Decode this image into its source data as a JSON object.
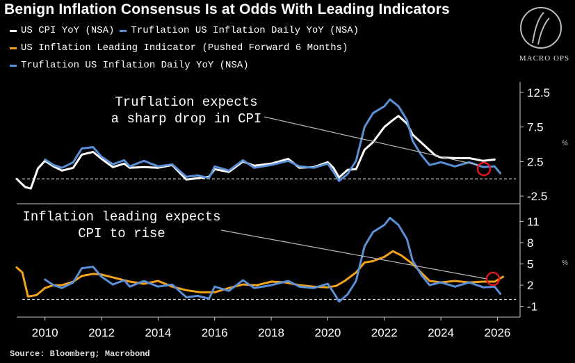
{
  "title": "Benign Inflation Consensus Is at Odds With Leading Indicators",
  "legend": {
    "item1": "US CPI YoY (NSA)",
    "item2": "Truflation US Inflation Daily YoY (NSA)",
    "item3": "US Inflation Leading Indicator (Pushed Forward 6 Months)",
    "item4": "Truflation US Inflation Daily YoY (NSA)"
  },
  "logo_text": "MACRO OPS",
  "source": "Source: Bloomberg; Macrobond",
  "colors": {
    "cpi": "#ffffff",
    "truflation": "#5b8fd6",
    "leading": "#f2a31b",
    "highlight": "#e0191f",
    "background": "#000000",
    "axis": "#cccccc"
  },
  "chart_data": [
    {
      "type": "line",
      "annotation": [
        "Truflation expects",
        "a sharp drop in CPI"
      ],
      "yticks": [
        12.5,
        7.5,
        2.5,
        -2.5
      ],
      "ytick_labels": [
        "12.5",
        "7.5",
        "2.5",
        "-2.5"
      ],
      "ylim": [
        -3.5,
        14
      ],
      "xlim": [
        2009,
        2026.8
      ],
      "axis_marker": "%",
      "grid": false,
      "series": [
        {
          "key": "cpi",
          "x": [
            2009.0,
            2009.3,
            2009.5,
            2009.75,
            2010.0,
            2010.3,
            2010.6,
            2011.0,
            2011.3,
            2011.7,
            2012.0,
            2012.4,
            2012.8,
            2013.0,
            2013.5,
            2014.0,
            2014.5,
            2015.0,
            2015.4,
            2015.8,
            2016.0,
            2016.5,
            2017.0,
            2017.4,
            2018.0,
            2018.6,
            2019.0,
            2019.5,
            2020.0,
            2020.2,
            2020.4,
            2020.7,
            2021.0,
            2021.3,
            2021.6,
            2022.0,
            2022.3,
            2022.5,
            2022.8,
            2023.0,
            2023.4,
            2023.8,
            2024.0,
            2024.5,
            2025.0,
            2025.5,
            2025.9
          ],
          "y": [
            0.0,
            -1.2,
            -1.4,
            1.5,
            2.6,
            1.8,
            1.2,
            1.6,
            3.5,
            3.9,
            2.9,
            1.7,
            2.2,
            1.6,
            1.7,
            1.6,
            2.0,
            -0.1,
            0.1,
            0.3,
            1.4,
            1.0,
            2.5,
            1.9,
            2.2,
            2.9,
            1.6,
            1.7,
            2.4,
            1.6,
            0.2,
            1.3,
            1.4,
            4.2,
            5.3,
            7.5,
            8.5,
            9.1,
            8.0,
            6.4,
            4.9,
            3.4,
            3.1,
            3.0,
            3.0,
            2.6,
            2.8
          ]
        },
        {
          "key": "truflation",
          "x": [
            2010.0,
            2010.3,
            2010.6,
            2011.0,
            2011.3,
            2011.7,
            2012.0,
            2012.4,
            2012.8,
            2013.0,
            2013.5,
            2014.0,
            2014.5,
            2015.0,
            2015.4,
            2015.8,
            2016.0,
            2016.5,
            2017.0,
            2017.4,
            2018.0,
            2018.6,
            2019.0,
            2019.5,
            2020.0,
            2020.2,
            2020.4,
            2020.7,
            2021.0,
            2021.3,
            2021.6,
            2022.0,
            2022.2,
            2022.5,
            2022.8,
            2023.0,
            2023.3,
            2023.6,
            2024.0,
            2024.5,
            2025.0,
            2025.5,
            2025.9,
            2026.1
          ],
          "y": [
            2.8,
            2.0,
            1.6,
            2.4,
            4.4,
            4.6,
            3.2,
            2.1,
            2.7,
            1.8,
            2.6,
            1.8,
            2.1,
            0.3,
            0.5,
            0.1,
            1.8,
            1.2,
            2.7,
            1.6,
            2.0,
            2.6,
            1.8,
            1.6,
            2.2,
            1.0,
            -0.3,
            0.7,
            2.6,
            7.5,
            9.5,
            10.5,
            11.5,
            10.5,
            8.5,
            5.5,
            3.5,
            2.0,
            2.4,
            1.8,
            2.4,
            1.7,
            1.8,
            0.8
          ]
        }
      ]
    },
    {
      "type": "line",
      "annotation": [
        "Inflation leading expects",
        "CPI to rise"
      ],
      "yticks": [
        11,
        8,
        5,
        2,
        -1
      ],
      "ytick_labels": [
        "11",
        "8",
        "5",
        "2",
        "-1"
      ],
      "ylim": [
        -2.5,
        13
      ],
      "xlim": [
        2009,
        2026.8
      ],
      "axis_marker": "%",
      "grid": false,
      "xticks": [
        2010,
        2012,
        2014,
        2016,
        2018,
        2020,
        2022,
        2024,
        2026
      ],
      "xtick_labels": [
        "2010",
        "2012",
        "2014",
        "2016",
        "2018",
        "2020",
        "2022",
        "2024",
        "2026"
      ],
      "series": [
        {
          "key": "leading",
          "x": [
            2009.0,
            2009.2,
            2009.4,
            2009.7,
            2010.0,
            2010.3,
            2010.6,
            2011.0,
            2011.3,
            2011.7,
            2012.0,
            2012.5,
            2013.0,
            2013.5,
            2014.0,
            2014.5,
            2015.0,
            2015.5,
            2016.0,
            2016.5,
            2017.0,
            2017.5,
            2018.0,
            2018.5,
            2019.0,
            2019.5,
            2020.0,
            2020.3,
            2020.6,
            2021.0,
            2021.3,
            2021.6,
            2022.0,
            2022.3,
            2022.6,
            2023.0,
            2023.3,
            2023.6,
            2024.0,
            2024.5,
            2025.0,
            2025.5,
            2025.9,
            2026.2
          ],
          "y": [
            4.5,
            3.8,
            0.4,
            0.6,
            1.6,
            2.0,
            2.0,
            2.5,
            3.3,
            3.6,
            3.5,
            3.0,
            2.5,
            2.2,
            2.6,
            1.8,
            1.3,
            1.0,
            1.0,
            1.6,
            2.1,
            2.0,
            2.5,
            2.4,
            2.0,
            1.8,
            1.7,
            1.9,
            2.6,
            3.8,
            5.2,
            5.4,
            6.0,
            6.8,
            6.2,
            5.0,
            3.8,
            2.6,
            2.4,
            2.6,
            2.4,
            2.5,
            2.5,
            3.2
          ]
        },
        {
          "key": "truflation",
          "x": [
            2010.0,
            2010.3,
            2010.6,
            2011.0,
            2011.3,
            2011.7,
            2012.0,
            2012.4,
            2012.8,
            2013.0,
            2013.5,
            2014.0,
            2014.5,
            2015.0,
            2015.4,
            2015.8,
            2016.0,
            2016.5,
            2017.0,
            2017.4,
            2018.0,
            2018.6,
            2019.0,
            2019.5,
            2020.0,
            2020.2,
            2020.4,
            2020.7,
            2021.0,
            2021.3,
            2021.6,
            2022.0,
            2022.2,
            2022.5,
            2022.8,
            2023.0,
            2023.3,
            2023.6,
            2024.0,
            2024.5,
            2025.0,
            2025.5,
            2025.9,
            2026.1
          ],
          "y": [
            2.8,
            2.0,
            1.6,
            2.4,
            4.4,
            4.6,
            3.2,
            2.1,
            2.7,
            1.8,
            2.6,
            1.8,
            2.1,
            0.3,
            0.5,
            0.1,
            1.8,
            1.2,
            2.7,
            1.6,
            2.0,
            2.6,
            1.8,
            1.6,
            2.2,
            1.0,
            -0.3,
            0.7,
            2.6,
            7.5,
            9.5,
            10.5,
            11.5,
            10.5,
            8.5,
            5.5,
            3.5,
            2.0,
            2.4,
            1.8,
            2.4,
            1.7,
            1.8,
            0.8
          ]
        }
      ]
    }
  ]
}
